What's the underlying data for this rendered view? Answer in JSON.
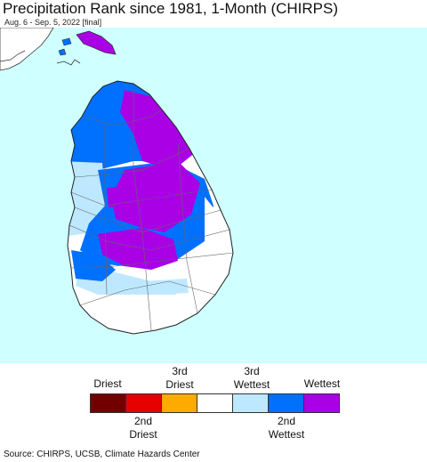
{
  "header": {
    "title": "Precipitation Rank since 1981, 1-Month (CHIRPS)",
    "subtitle": "Aug. 6 - Sep. 5, 2022 [final]"
  },
  "colors": {
    "ocean": "#cfffff",
    "land": "#ffffff",
    "boundary": "#555555",
    "driest": "#730000",
    "second_driest": "#e60000",
    "third_driest": "#ffaa00",
    "normal": "#ffffff",
    "third_wettest": "#bee8ff",
    "second_wettest": "#0070ff",
    "wettest": "#a900e6"
  },
  "legend": {
    "top_labels": [
      "Driest",
      "3rd\nDriest",
      "3rd\nWettest",
      "Wettest"
    ],
    "bottom_labels": [
      "2nd\nDriest",
      "2nd\nWettest"
    ],
    "categories": [
      {
        "name": "driest",
        "color": "#730000"
      },
      {
        "name": "second-driest",
        "color": "#e60000"
      },
      {
        "name": "third-driest",
        "color": "#ffaa00"
      },
      {
        "name": "normal",
        "color": "#ffffff"
      },
      {
        "name": "third-wettest",
        "color": "#bee8ff"
      },
      {
        "name": "second-wettest",
        "color": "#0070ff"
      },
      {
        "name": "wettest",
        "color": "#a900e6"
      }
    ]
  },
  "footer": {
    "source": "Source: CHIRPS, UCSB, Climate Hazards Center"
  }
}
